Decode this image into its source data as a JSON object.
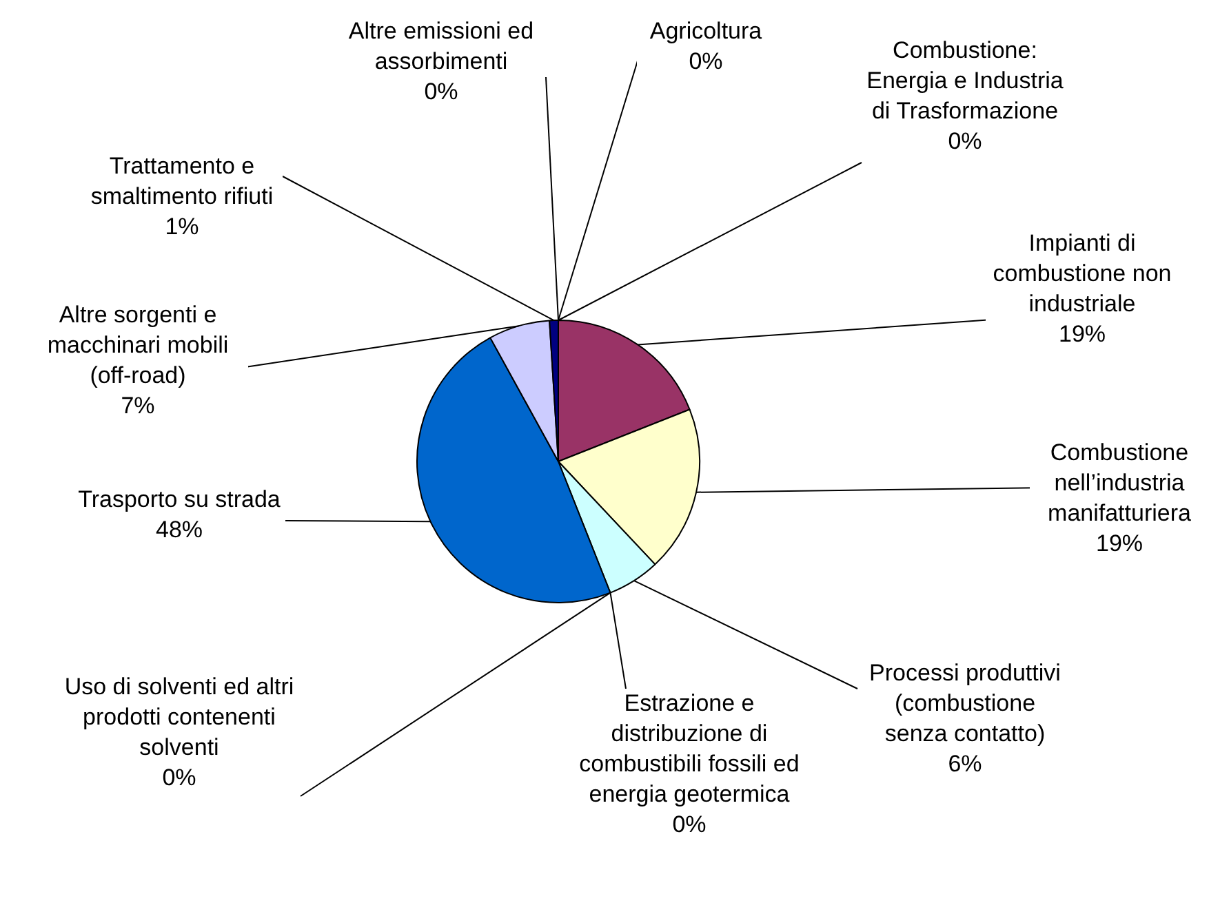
{
  "chart_data": {
    "type": "pie",
    "categories": [
      "Combustione: Energia e Industria di Trasformazione",
      "Impianti di combustione non industriale",
      "Combustione nell’industria manifatturiera",
      "Processi produttivi (combustione senza contatto)",
      "Estrazione e distribuzione di combustibili fossili ed energia geotermica",
      "Uso di solventi ed altri prodotti contenenti solventi",
      "Trasporto su strada",
      "Altre sorgenti e macchinari mobili (off-road)",
      "Trattamento e smaltimento rifiuti",
      "Altre emissioni ed assorbimenti",
      "Agricoltura"
    ],
    "values": [
      0,
      19,
      19,
      6,
      0,
      0,
      48,
      7,
      1,
      0,
      0
    ],
    "value_labels": [
      "0%",
      "19%",
      "19%",
      "6%",
      "0%",
      "0%",
      "48%",
      "7%",
      "1%",
      "0%",
      "0%"
    ],
    "colors": [
      "#9999ff",
      "#993366",
      "#ffffcc",
      "#ccffff",
      "#660066",
      "#ff8080",
      "#0066cc",
      "#ccccff",
      "#000080",
      "#ff00ff",
      "#ffff00"
    ],
    "legend": false
  }
}
